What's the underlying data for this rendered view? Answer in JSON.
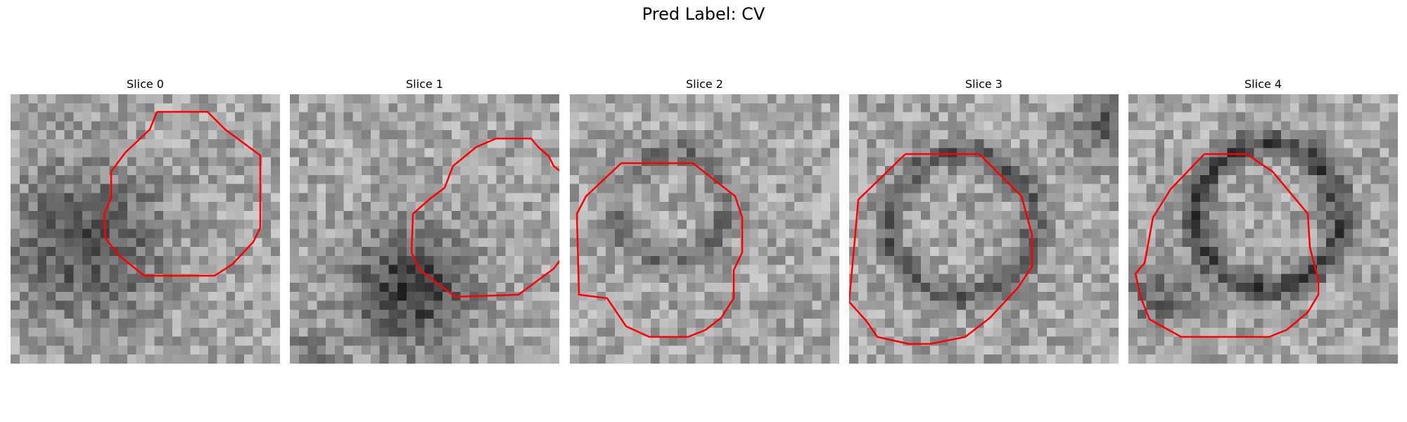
{
  "figure": {
    "title": "Pred Label: CV"
  },
  "panels": [
    {
      "title": "Slice 0"
    },
    {
      "title": "Slice 1"
    },
    {
      "title": "Slice 2"
    },
    {
      "title": "Slice 3"
    },
    {
      "title": "Slice 4"
    }
  ],
  "colors": {
    "contour": "#ff0000",
    "background": "#ffffff"
  },
  "image_style": "grayscale pixelated microscopy patch"
}
